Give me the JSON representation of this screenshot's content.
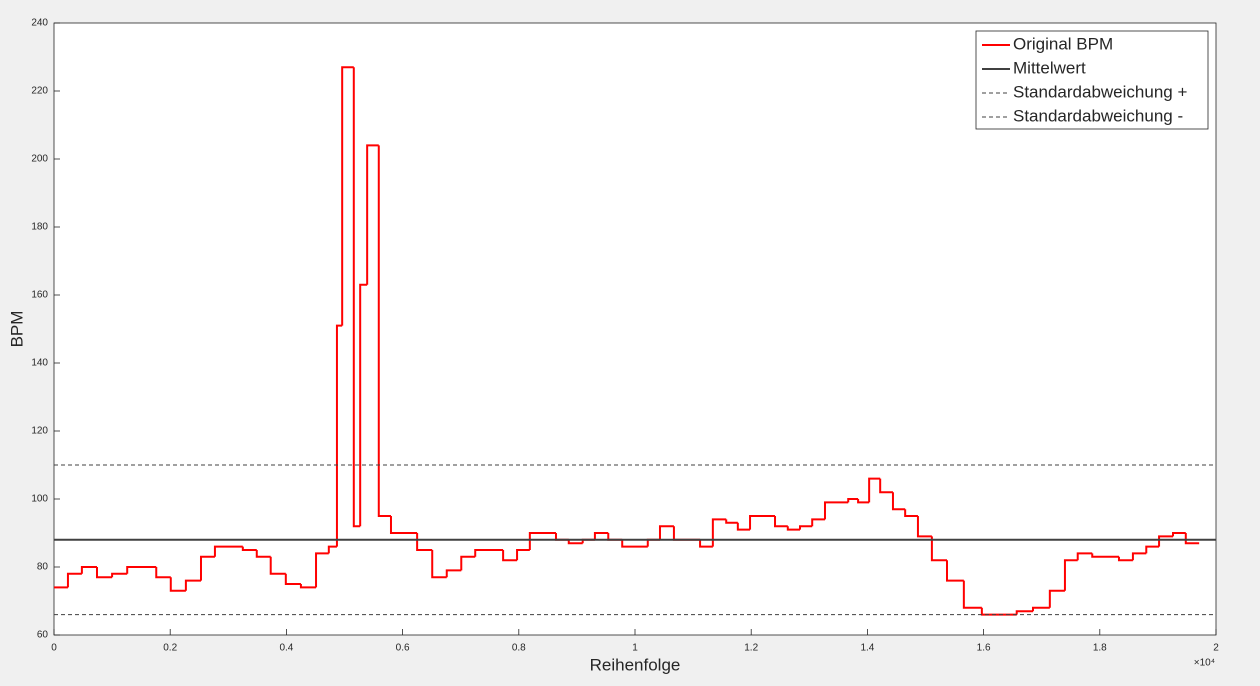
{
  "chart_data": {
    "type": "stairs",
    "xlabel": "Reihenfolge",
    "ylabel": "BPM",
    "x_exponent": "×10⁴",
    "xlim": [
      0,
      2
    ],
    "xticks": [
      0,
      0.2,
      0.4,
      0.6,
      0.8,
      1,
      1.2,
      1.4,
      1.6,
      1.8,
      2
    ],
    "ylim": [
      60,
      240
    ],
    "yticks": [
      60,
      80,
      100,
      120,
      140,
      160,
      180,
      200,
      220,
      240
    ],
    "legend": "upper right",
    "series": [
      {
        "name": "Original BPM",
        "color": "#ff0000",
        "line_style": "steps",
        "x": [
          0,
          0.024,
          0.048,
          0.074,
          0.1,
          0.126,
          0.176,
          0.201,
          0.227,
          0.253,
          0.277,
          0.325,
          0.349,
          0.373,
          0.399,
          0.425,
          0.451,
          0.473,
          0.487,
          0.496,
          0.516,
          0.527,
          0.539,
          0.559,
          0.58,
          0.625,
          0.651,
          0.676,
          0.701,
          0.725,
          0.773,
          0.797,
          0.819,
          0.864,
          0.886,
          0.91,
          0.931,
          0.954,
          0.978,
          1.022,
          1.043,
          1.067,
          1.112,
          1.134,
          1.157,
          1.177,
          1.198,
          1.241,
          1.263,
          1.284,
          1.305,
          1.327,
          1.367,
          1.384,
          1.403,
          1.422,
          1.444,
          1.465,
          1.487,
          1.511,
          1.537,
          1.566,
          1.597,
          1.657,
          1.685,
          1.714,
          1.74,
          1.762,
          1.787,
          1.833,
          1.857,
          1.88,
          1.902,
          1.926,
          1.948,
          1.971
        ],
        "values": [
          74,
          78,
          80,
          77,
          78,
          80,
          77,
          73,
          76,
          83,
          86,
          85,
          83,
          78,
          75,
          74,
          84,
          86,
          151,
          227,
          92,
          163,
          204,
          95,
          90,
          85,
          77,
          79,
          83,
          85,
          82,
          85,
          90,
          88,
          87,
          88,
          90,
          88,
          86,
          88,
          92,
          88,
          86,
          94,
          93,
          91,
          95,
          92,
          91,
          92,
          94,
          99,
          100,
          99,
          106,
          102,
          97,
          95,
          89,
          82,
          76,
          68,
          66,
          67,
          68,
          73,
          82,
          84,
          83,
          82,
          84,
          86,
          89,
          90,
          87,
          87
        ]
      },
      {
        "name": "Mittelwert",
        "color": "#404040",
        "line_style": "solid",
        "x": [
          0,
          2
        ],
        "values": [
          88,
          88
        ]
      },
      {
        "name": "Standardabweichung +",
        "color": "#404040",
        "line_style": "dashed",
        "x": [
          0,
          2
        ],
        "values": [
          110,
          110
        ]
      },
      {
        "name": "Standardabweichung -",
        "color": "#404040",
        "line_style": "dashed",
        "x": [
          0,
          2
        ],
        "values": [
          66,
          66
        ]
      }
    ]
  }
}
